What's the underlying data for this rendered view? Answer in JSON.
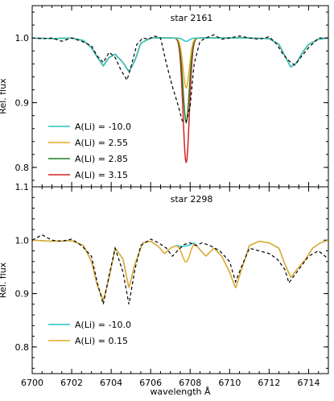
{
  "chart_data": [
    {
      "type": "line",
      "title": "star 2161",
      "xlabel": "",
      "ylabel": "Rel. flux",
      "xlim": [
        6700,
        6715
      ],
      "ylim": [
        0.77,
        1.05
      ],
      "yticks": [
        0.8,
        0.9,
        1.0
      ],
      "ytick_labels": [
        "0.8",
        "0.9",
        "1.0"
      ],
      "xticks": [
        6700,
        6702,
        6704,
        6706,
        6708,
        6710,
        6712,
        6714
      ],
      "legend_position": "lower-left",
      "observed": {
        "x": [
          6700.0,
          6700.5,
          6701.0,
          6701.5,
          6702.0,
          6702.5,
          6703.0,
          6703.3,
          6703.6,
          6703.9,
          6704.2,
          6704.5,
          6704.8,
          6705.0,
          6705.3,
          6705.6,
          6705.9,
          6706.2,
          6706.5,
          6706.8,
          6707.1,
          6707.4,
          6707.6,
          6707.8,
          6708.0,
          6708.2,
          6708.5,
          6708.8,
          6709.2,
          6709.6,
          6710.0,
          6710.5,
          6711.0,
          6711.5,
          6712.0,
          6712.4,
          6712.7,
          6713.0,
          6713.3,
          6713.6,
          6714.0,
          6714.5,
          6715.0
        ],
        "y": [
          1.0,
          0.999,
          1.0,
          0.995,
          1.0,
          0.995,
          0.988,
          0.972,
          0.962,
          0.978,
          0.97,
          0.95,
          0.935,
          0.955,
          0.99,
          1.0,
          0.998,
          1.003,
          1.0,
          0.96,
          0.925,
          0.895,
          0.872,
          0.87,
          0.895,
          0.96,
          0.995,
          1.0,
          1.005,
          0.998,
          1.0,
          1.003,
          1.0,
          0.998,
          1.002,
          0.99,
          0.975,
          0.965,
          0.958,
          0.97,
          0.985,
          1.0,
          1.0
        ]
      },
      "series": [
        {
          "name": "A(Li) = -10.0",
          "color": "#2bc4c4",
          "depth": 0.005
        },
        {
          "name": "A(Li) = 2.55",
          "color": "#e8a92a",
          "depth": 0.077
        },
        {
          "name": "A(Li) = 2.85",
          "color": "#1f7f1f",
          "depth": 0.13
        },
        {
          "name": "A(Li) = 3.15",
          "color": "#d62222",
          "depth": 0.193
        }
      ],
      "model_base": {
        "x": [
          6700.0,
          6701.0,
          6702.0,
          6702.6,
          6703.0,
          6703.3,
          6703.6,
          6703.9,
          6704.2,
          6704.6,
          6704.9,
          6705.2,
          6705.5,
          6706.0,
          6706.5,
          6707.0,
          6708.0,
          6708.5,
          6709.0,
          6710.0,
          6711.0,
          6712.0,
          6712.5,
          6712.8,
          6713.1,
          6713.4,
          6713.7,
          6714.0,
          6714.5,
          6715.0
        ],
        "y": [
          1.0,
          0.999,
          1.0,
          0.996,
          0.985,
          0.97,
          0.957,
          0.97,
          0.975,
          0.962,
          0.948,
          0.965,
          0.992,
          1.0,
          1.0,
          1.0,
          1.0,
          1.0,
          1.0,
          1.0,
          1.0,
          0.999,
          0.99,
          0.972,
          0.955,
          0.962,
          0.978,
          0.99,
          0.998,
          1.0
        ]
      },
      "line_center": 6707.8
    },
    {
      "type": "line",
      "title": "star 2298",
      "xlabel": "wavelength Å",
      "ylabel": "Rel. flux",
      "xlim": [
        6700,
        6715
      ],
      "ylim": [
        0.75,
        1.1
      ],
      "yticks": [
        0.8,
        0.9,
        1.0,
        1.1
      ],
      "ytick_labels": [
        "0.8",
        "0.9",
        "1.0",
        "1.1"
      ],
      "xticks": [
        6700,
        6702,
        6704,
        6706,
        6708,
        6710,
        6712,
        6714
      ],
      "xtick_labels": [
        "6700",
        "6702",
        "6704",
        "6706",
        "6708",
        "6710",
        "6712",
        "6714"
      ],
      "legend_position": "lower-left",
      "observed": {
        "x": [
          6700.0,
          6700.5,
          6701.0,
          6701.5,
          6702.0,
          6702.5,
          6703.0,
          6703.3,
          6703.6,
          6703.9,
          6704.2,
          6704.6,
          6704.9,
          6705.2,
          6705.5,
          6706.0,
          6706.4,
          6706.8,
          6707.1,
          6707.4,
          6707.7,
          6708.0,
          6708.3,
          6708.6,
          6709.0,
          6709.5,
          6710.0,
          6710.3,
          6710.6,
          6711.0,
          6711.5,
          6712.0,
          6712.4,
          6712.8,
          6713.0,
          6713.3,
          6713.6,
          6714.0,
          6714.5,
          6715.0
        ],
        "y": [
          1.0,
          1.01,
          1.0,
          0.998,
          1.002,
          0.99,
          0.97,
          0.92,
          0.88,
          0.935,
          0.985,
          0.94,
          0.88,
          0.945,
          0.99,
          1.002,
          0.995,
          0.985,
          0.97,
          0.982,
          0.992,
          0.995,
          0.99,
          0.995,
          0.99,
          0.98,
          0.96,
          0.922,
          0.95,
          0.985,
          0.98,
          0.975,
          0.965,
          0.945,
          0.92,
          0.935,
          0.95,
          0.97,
          0.98,
          0.965
        ]
      },
      "series": [
        {
          "name": "A(Li) = -10.0",
          "color": "#2bc4c4"
        },
        {
          "name": "A(Li) = 0.15",
          "color": "#e8a92a"
        }
      ],
      "model_li_free": {
        "x": [
          6700.0,
          6701.0,
          6702.0,
          6702.6,
          6703.0,
          6703.3,
          6703.6,
          6703.9,
          6704.2,
          6704.6,
          6704.9,
          6705.2,
          6705.6,
          6706.0,
          6706.4,
          6706.7,
          6707.0,
          6707.3,
          6707.6,
          6707.9,
          6708.2,
          6708.5,
          6708.8,
          6709.2,
          6709.6,
          6710.0,
          6710.3,
          6710.6,
          6711.0,
          6711.5,
          6712.0,
          6712.5,
          6712.8,
          6713.1,
          6713.4,
          6713.8,
          6714.2,
          6714.6,
          6715.0
        ],
        "y": [
          1.0,
          0.998,
          0.999,
          0.99,
          0.96,
          0.915,
          0.887,
          0.93,
          0.985,
          0.965,
          0.91,
          0.955,
          0.995,
          0.998,
          0.988,
          0.975,
          0.985,
          0.99,
          0.988,
          0.99,
          0.995,
          0.982,
          0.97,
          0.985,
          0.97,
          0.94,
          0.91,
          0.945,
          0.99,
          0.998,
          0.995,
          0.985,
          0.955,
          0.93,
          0.945,
          0.962,
          0.985,
          0.995,
          1.0
        ]
      },
      "li_center": 6707.8,
      "li_depth": 0.03
    }
  ]
}
